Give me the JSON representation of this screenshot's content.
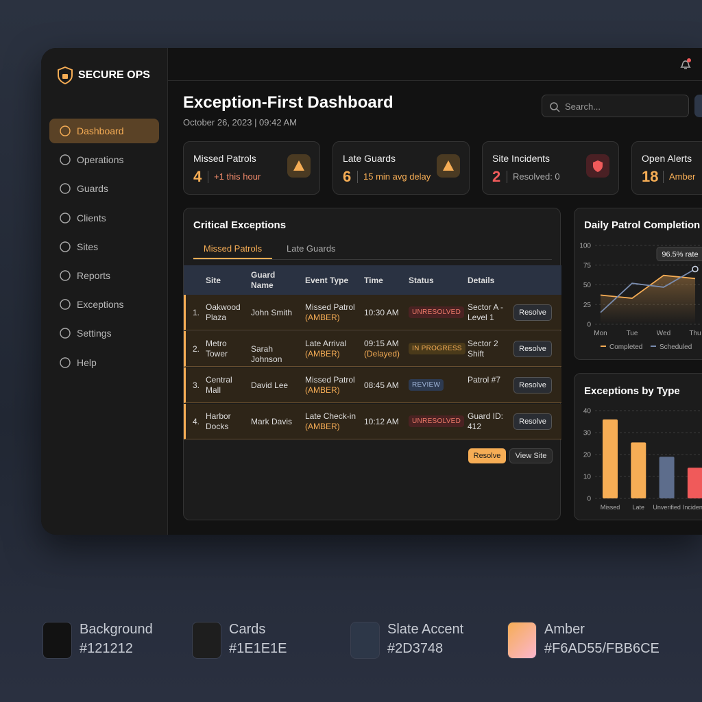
{
  "sidebar": {
    "brand": "SECURE OPS",
    "nav": [
      "Dashboard",
      "Operations",
      "Guards",
      "Clients",
      "Sites",
      "Reports",
      "Exceptions",
      "Settings",
      "Help"
    ]
  },
  "header": {
    "title": "Exception-First Dashboard",
    "date": "October 26, 2023 | 09:42 AM",
    "search_placeholder": "Search..."
  },
  "kpis": [
    {
      "title": "Missed Patrols",
      "value": "4",
      "note": "+1 this hour"
    },
    {
      "title": "Late Guards",
      "value": "6",
      "note": "15 min avg delay"
    },
    {
      "title": "Site Incidents",
      "value": "2",
      "note": "Resolved: 0"
    },
    {
      "title": "Open Alerts",
      "value": "18",
      "note": "Amber"
    }
  ],
  "exceptions": {
    "title": "Critical Exceptions",
    "tabs": [
      "Missed Patrols",
      "Late Guards"
    ],
    "columns": [
      "Site",
      "Guard Name",
      "Event Type",
      "Time",
      "Status",
      "Details"
    ],
    "rows": [
      {
        "index": "1.",
        "site": "Oakwood Plaza",
        "guard": "John Smith",
        "event": "Missed Patrol",
        "event_tag": "(AMBER)",
        "time": "10:30 AM",
        "status": "UNRESOLVED",
        "details": "Sector A - Level 1",
        "action": "Resolve"
      },
      {
        "index": "2.",
        "site": "Metro Tower",
        "guard": "Sarah Johnson",
        "event": "Late Arrival",
        "event_tag": "(AMBER)",
        "time": "09:15 AM",
        "time_note": "(Delayed)",
        "status": "IN PROGRESS",
        "details": "Sector 2 Shift",
        "action": "Resolve"
      },
      {
        "index": "3.",
        "site": "Central Mall",
        "guard": "David Lee",
        "event": "Missed Patrol",
        "event_tag": "(AMBER)",
        "time": "08:45 AM",
        "status": "REVIEW",
        "details": "Patrol #7",
        "action": "Resolve"
      },
      {
        "index": "4.",
        "site": "Harbor Docks",
        "guard": "Mark Davis",
        "event": "Late Check-in",
        "event_tag": "(AMBER)",
        "time": "10:12 AM",
        "status": "UNRESOLVED",
        "details": "Guard ID: 412",
        "action": "Resolve"
      }
    ],
    "buttons": [
      "Resolve",
      "View Site"
    ]
  },
  "line_chart": {
    "type": "line",
    "title": "Daily Patrol Completion",
    "categories": [
      "Mon",
      "Tue",
      "Wed",
      "Thu"
    ],
    "series": [
      {
        "name": "Completed",
        "color": "#f6ad55",
        "values": [
          37,
          33,
          62,
          58
        ]
      },
      {
        "name": "Scheduled",
        "color": "#7a8db0",
        "values": [
          15,
          52,
          47,
          70
        ]
      }
    ],
    "annotation": "96.5% rate",
    "ylim": [
      0,
      100
    ],
    "yticks": [
      0,
      25,
      50,
      75,
      100
    ],
    "grid": true
  },
  "bar_chart": {
    "type": "bar",
    "title": "Exceptions by Type",
    "categories": [
      "Missed",
      "Late",
      "Unverified",
      "Incidents"
    ],
    "values": [
      36,
      25.5,
      19,
      14
    ],
    "colors": [
      "#f6ad55",
      "#f6ad55",
      "#5d6d8c",
      "#f05a5a"
    ],
    "ylim": [
      0,
      40
    ],
    "yticks": [
      0,
      10,
      20,
      30,
      40
    ],
    "grid": true
  },
  "palette": [
    {
      "name": "Background",
      "hex": "#121212",
      "color": "#121212"
    },
    {
      "name": "Cards",
      "hex": "#1E1E1E",
      "color": "#1E1E1E"
    },
    {
      "name": "Slate Accent",
      "hex": "#2D3748",
      "color": "#2D3748"
    },
    {
      "name": "Amber",
      "hex": "#F6AD55/FBB6CE",
      "color": "#F6AD55"
    }
  ]
}
